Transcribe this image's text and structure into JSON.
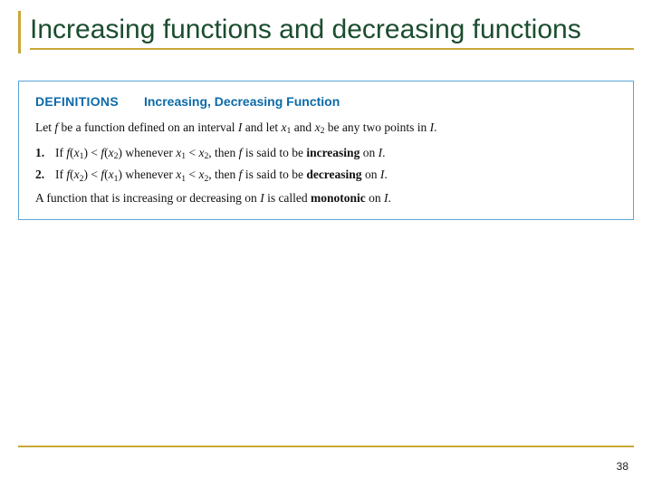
{
  "title": "Increasing functions and decreasing functions",
  "defbox": {
    "label": "DEFINITIONS",
    "subtitle": "Increasing, Decreasing Function",
    "intro_html": "Let <span class='ital'>f</span> be a function defined on an interval <span class='ital'>I</span> and let <span class='ital'>x</span><sub>1</sub> and <span class='ital'>x</span><sub>2</sub> be any two points in <span class='ital'>I</span>.",
    "items": [
      {
        "num": "1.",
        "html": "If <span class='ital'>f</span>(<span class='ital'>x</span><sub>1</sub>) &lt; <span class='ital'>f</span>(<span class='ital'>x</span><sub>2</sub>) whenever <span class='ital'>x</span><sub>1</sub> &lt; <span class='ital'>x</span><sub>2</sub>, then <span class='ital'>f</span> is said to be <span class='bold'>increasing</span> on <span class='ital'>I</span>."
      },
      {
        "num": "2.",
        "html": "If <span class='ital'>f</span>(<span class='ital'>x</span><sub>2</sub>) &lt; <span class='ital'>f</span>(<span class='ital'>x</span><sub>1</sub>) whenever <span class='ital'>x</span><sub>1</sub> &lt; <span class='ital'>x</span><sub>2</sub>, then <span class='ital'>f</span> is said to be <span class='bold'>decreasing</span> on <span class='ital'>I</span>."
      }
    ],
    "note_html": "A function that is increasing or decreasing on <span class='ital'>I</span> is called <span class='bold'>monotonic</span> on <span class='ital'>I</span>."
  },
  "page_number": "38",
  "colors": {
    "accent_gold": "#c8a838",
    "title_green": "#1b4d2e",
    "box_border": "#5aa6d8",
    "def_blue": "#0b6aa8"
  }
}
